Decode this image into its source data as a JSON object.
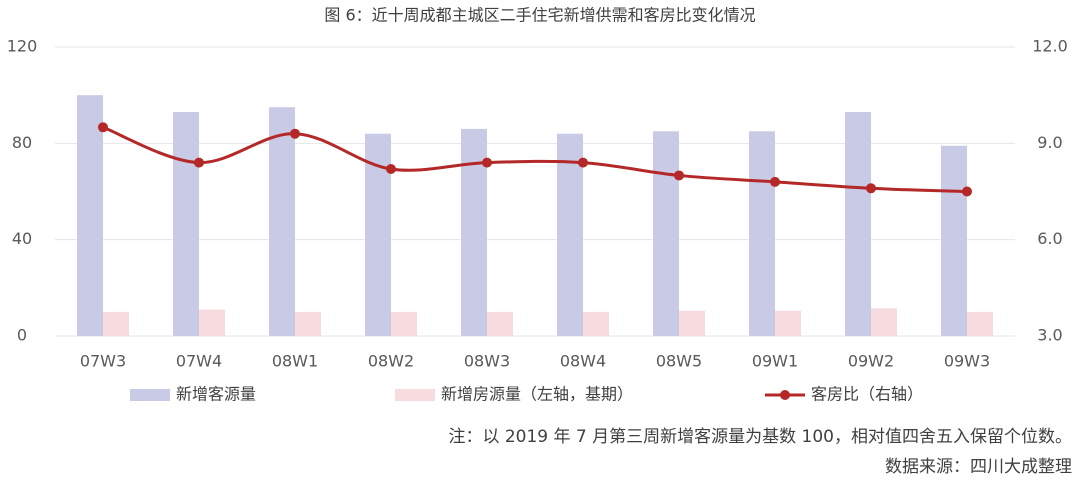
{
  "chart_data": {
    "type": "bar",
    "title": "图 6：近十周成都主城区二手住宅新增供需和客房比变化情况",
    "categories": [
      "07W3",
      "07W4",
      "08W1",
      "08W2",
      "08W3",
      "08W4",
      "08W5",
      "09W1",
      "09W2",
      "09W3"
    ],
    "series": [
      {
        "name": "新增客源量",
        "type": "bar",
        "color": "#c9cae6",
        "values": [
          100,
          93,
          95,
          84,
          86,
          84,
          85,
          85,
          93,
          79
        ]
      },
      {
        "name": "新增房源量（左轴，基期）",
        "type": "bar",
        "color": "#f6dcdf",
        "values": [
          10,
          11,
          10,
          10,
          10,
          10,
          10.5,
          10.5,
          11.5,
          10
        ]
      },
      {
        "name": "客房比（右轴）",
        "type": "line",
        "axis": "y2",
        "color": "#b42828",
        "values": [
          9.5,
          8.4,
          9.3,
          8.2,
          8.4,
          8.4,
          8.0,
          7.8,
          7.6,
          7.5
        ]
      }
    ],
    "ylim": [
      0,
      120
    ],
    "yticks": [
      0,
      40,
      80,
      120
    ],
    "y2lim": [
      3,
      12
    ],
    "y2ticks": [
      {
        "value": 3,
        "label": "3.0"
      },
      {
        "value": 6,
        "label": "6.0"
      },
      {
        "value": 9,
        "label": "9.0"
      },
      {
        "value": 12,
        "label": "12.0"
      }
    ],
    "grid": true,
    "notes": [
      "注：以 2019 年 7 月第三周新增客源量为基数 100，相对值四舍五入保留个位数。",
      "数据来源：四川大成整理"
    ]
  }
}
